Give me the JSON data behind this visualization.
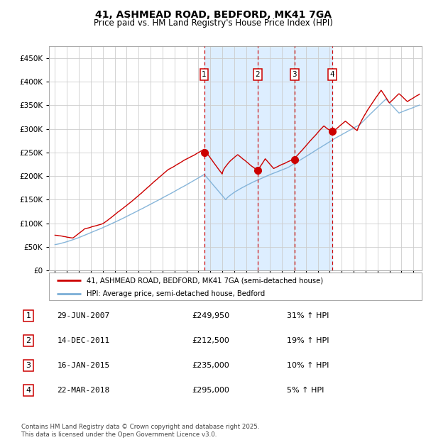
{
  "title": "41, ASHMEAD ROAD, BEDFORD, MK41 7GA",
  "subtitle": "Price paid vs. HM Land Registry's House Price Index (HPI)",
  "legend_red": "41, ASHMEAD ROAD, BEDFORD, MK41 7GA (semi-detached house)",
  "legend_blue": "HPI: Average price, semi-detached house, Bedford",
  "footer": "Contains HM Land Registry data © Crown copyright and database right 2025.\nThis data is licensed under the Open Government Licence v3.0.",
  "transactions": [
    {
      "num": 1,
      "date": "29-JUN-2007",
      "price": 249950,
      "pct": "31%",
      "dir": "↑"
    },
    {
      "num": 2,
      "date": "14-DEC-2011",
      "price": 212500,
      "pct": "19%",
      "dir": "↑"
    },
    {
      "num": 3,
      "date": "16-JAN-2015",
      "price": 235000,
      "pct": "10%",
      "dir": "↑"
    },
    {
      "num": 4,
      "date": "22-MAR-2018",
      "price": 295000,
      "pct": "5%",
      "dir": "↑"
    }
  ],
  "sale_dates_decimal": [
    2007.49,
    2011.95,
    2015.04,
    2018.22
  ],
  "sale_prices": [
    249950,
    212500,
    235000,
    295000
  ],
  "ylim": [
    0,
    475000
  ],
  "yticks": [
    0,
    50000,
    100000,
    150000,
    200000,
    250000,
    300000,
    350000,
    400000,
    450000
  ],
  "xlim_start": 1994.5,
  "xlim_end": 2025.7,
  "bg_band_start": 2007.49,
  "bg_band_end": 2018.22,
  "red_color": "#cc0000",
  "blue_color": "#7aaed6",
  "band_color": "#ddeeff",
  "grid_color": "#cccccc",
  "title_fontsize": 10,
  "subtitle_fontsize": 9
}
